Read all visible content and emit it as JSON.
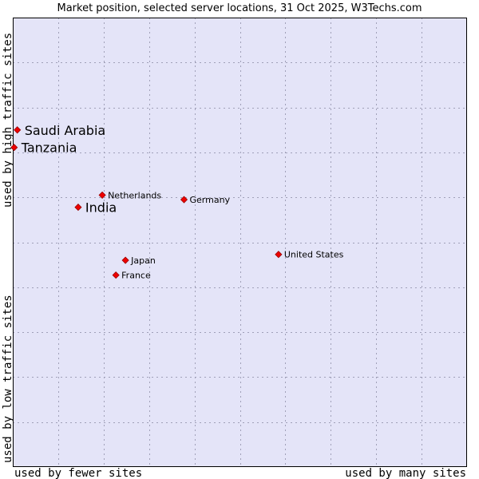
{
  "chart_data": {
    "type": "scatter",
    "title": "Market position, selected server locations, 31 Oct 2025, W3Techs.com",
    "xlabel_left": "used by fewer sites",
    "xlabel_right": "used by many sites",
    "ylabel_bottom": "used by low traffic sites",
    "ylabel_top": "used by high traffic sites",
    "xlim": [
      0,
      100
    ],
    "ylim": [
      0,
      100
    ],
    "grid": true,
    "colors": {
      "plot_bg": "#e4e4f8",
      "grid": "#a0a0b8",
      "marker": "#ee0000",
      "marker_edge": "#990000"
    },
    "points": [
      {
        "name": "Saudi Arabia",
        "x": 1.0,
        "y": 75.0,
        "size": "large"
      },
      {
        "name": "Tanzania",
        "x": 0.3,
        "y": 71.1,
        "size": "large"
      },
      {
        "name": "Netherlands",
        "x": 19.7,
        "y": 60.5,
        "size": "small"
      },
      {
        "name": "Germany",
        "x": 37.7,
        "y": 59.5,
        "size": "small"
      },
      {
        "name": "India",
        "x": 14.4,
        "y": 57.8,
        "size": "large"
      },
      {
        "name": "United States",
        "x": 58.5,
        "y": 47.3,
        "size": "small"
      },
      {
        "name": "Japan",
        "x": 24.8,
        "y": 46.0,
        "size": "small"
      },
      {
        "name": "France",
        "x": 22.7,
        "y": 42.7,
        "size": "small"
      }
    ]
  }
}
